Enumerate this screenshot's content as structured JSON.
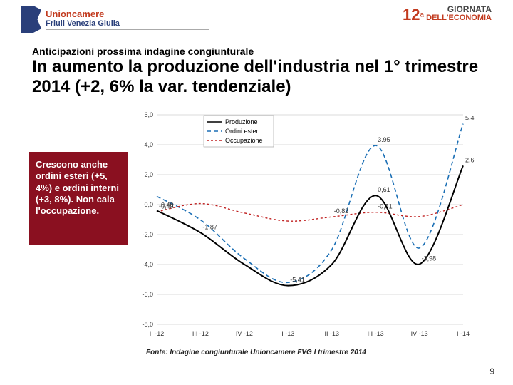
{
  "header": {
    "brand": "Unioncamere",
    "subbrand": "Friuli Venezia Giulia",
    "edition_number": "12",
    "edition_ordinal": "a",
    "edition_line1": "GIORNATA",
    "edition_line2": "DELL'ECONOMIA"
  },
  "kicker": "Anticipazioni prossima indagine congiunturale",
  "title": "In aumento la produzione dell'industria nel 1° trimestre 2014 (+2, 6% la var. tendenziale)",
  "callout": "Crescono anche ordini esteri (+5, 4%) e ordini interni (+3, 8%). Non cala l'occupazione.",
  "source": "Fonte: Indagine congiunturale Unioncamere FVG I trimestre 2014",
  "page_number": "9",
  "chart": {
    "ylim": [
      -8,
      6
    ],
    "ytick_step": 2,
    "x_labels": [
      "II -12",
      "III -12",
      "IV -12",
      "I -13",
      "II -13",
      "III -13",
      "IV -13",
      "I -14"
    ],
    "legend": {
      "produzione": "Produzione",
      "ordini_esteri": "Ordini esteri",
      "occupazione": "Occupazione"
    },
    "colors": {
      "produzione": "#000000",
      "ordini_esteri": "#1b6fb5",
      "occupazione": "#c02020",
      "grid": "#b8b8b8",
      "bg": "#ffffff"
    },
    "produzione_points": [
      -0.4,
      -1.87,
      -3.99,
      -5.41,
      -3.99,
      0.61,
      -3.98,
      2.6
    ],
    "produzione_labels": [
      "-0,40",
      "-1,87",
      "",
      "-5,41",
      "",
      "0,61",
      "-3,98",
      "2.6"
    ],
    "ordini_points": [
      0.55,
      -1.02,
      -3.6,
      -5.2,
      -3.0,
      3.95,
      -2.9,
      5.4
    ],
    "ordini_labels": [
      "",
      "",
      "",
      "",
      "",
      "3.95",
      "",
      "5.4"
    ],
    "occup_points": [
      -0.49,
      0.07,
      -0.56,
      -1.1,
      -0.82,
      -0.51,
      -0.8,
      0.0
    ],
    "occup_labels": [
      "-0,49",
      "",
      "",
      "",
      "-0,82",
      "-0,51",
      "",
      ""
    ]
  }
}
